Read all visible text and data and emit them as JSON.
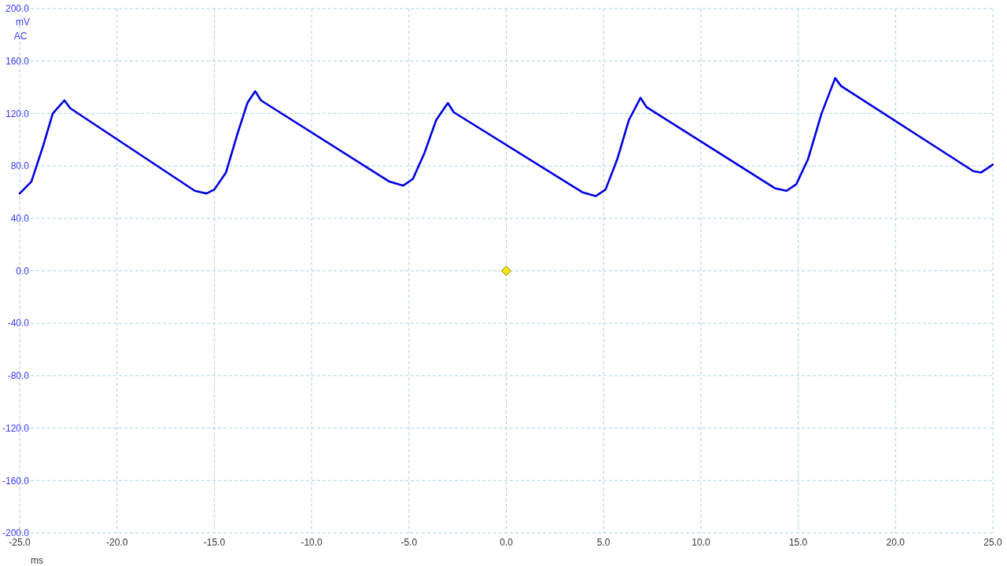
{
  "chart_data": {
    "type": "line",
    "xlabel": "ms",
    "ylabel": "mV",
    "annotations": [
      "AC"
    ],
    "xlim": [
      -25,
      25
    ],
    "ylim": [
      -200,
      200
    ],
    "xticks": [
      {
        "value": -25,
        "label": "-25.0"
      },
      {
        "value": -20,
        "label": "-20.0"
      },
      {
        "value": -15,
        "label": "-15.0"
      },
      {
        "value": -10,
        "label": "-10.0"
      },
      {
        "value": -5,
        "label": "-5.0"
      },
      {
        "value": 0,
        "label": "0.0"
      },
      {
        "value": 5,
        "label": "5.0"
      },
      {
        "value": 10,
        "label": "10.0"
      },
      {
        "value": 15,
        "label": "15.0"
      },
      {
        "value": 20,
        "label": "20.0"
      },
      {
        "value": 25,
        "label": "25.0"
      }
    ],
    "yticks": [
      {
        "value": -200,
        "label": "-200.0"
      },
      {
        "value": -160,
        "label": "-160.0"
      },
      {
        "value": -120,
        "label": "-120.0"
      },
      {
        "value": -80,
        "label": "-80.0"
      },
      {
        "value": -40,
        "label": "-40.0"
      },
      {
        "value": 0,
        "label": "0.0"
      },
      {
        "value": 40,
        "label": "40.0"
      },
      {
        "value": 80,
        "label": "80.0"
      },
      {
        "value": 120,
        "label": "120.0"
      },
      {
        "value": 160,
        "label": "160.0"
      },
      {
        "value": 200,
        "label": "200.0"
      }
    ],
    "grid": true,
    "marker": "none",
    "line_style": "solid",
    "series": [
      {
        "color": "#0000e0",
        "x": [
          -25,
          -24.4,
          -23.8,
          -23.3,
          -22.7,
          -22.4,
          -16.0,
          -15.4,
          -15.0,
          -14.4,
          -13.8,
          -13.3,
          -12.9,
          -12.6,
          -6.0,
          -5.3,
          -4.8,
          -4.2,
          -3.6,
          -3.0,
          -2.7,
          3.9,
          4.6,
          5.1,
          5.7,
          6.3,
          6.9,
          7.2,
          13.8,
          14.4,
          14.9,
          15.5,
          16.2,
          16.9,
          17.2,
          24.0,
          24.4,
          25.0
        ],
        "values": [
          59,
          68,
          95,
          120,
          130,
          124,
          61,
          59,
          62,
          75,
          105,
          128,
          137,
          130,
          68,
          65,
          70,
          90,
          115,
          128,
          121,
          60,
          57,
          62,
          85,
          115,
          132,
          125,
          63,
          61,
          66,
          85,
          120,
          147,
          141,
          76,
          75,
          81
        ]
      }
    ]
  }
}
